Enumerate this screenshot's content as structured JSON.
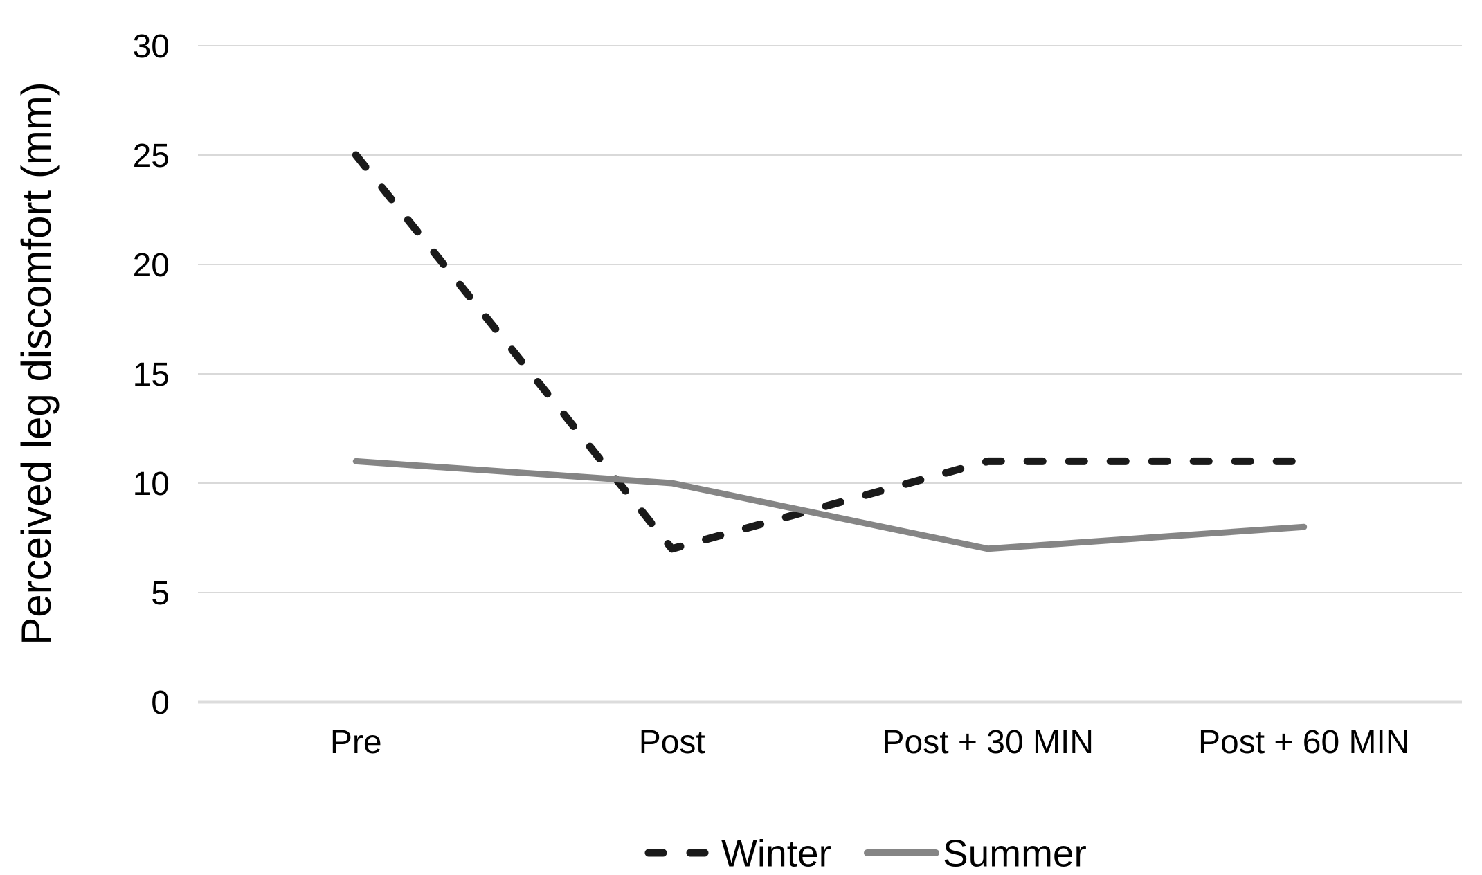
{
  "chart_data": {
    "type": "line",
    "title": "",
    "xlabel": "",
    "ylabel": "Perceived leg discomfort (mm)",
    "categories": [
      "Pre",
      "Post",
      "Post + 30 MIN",
      "Post + 60 MIN"
    ],
    "series": [
      {
        "name": "Winter",
        "values": [
          25,
          7,
          11,
          11
        ],
        "color": "#1a1a1a",
        "line_style": "dashed",
        "stroke_width": 11
      },
      {
        "name": "Summer",
        "values": [
          11,
          10,
          7,
          8
        ],
        "color": "#858585",
        "line_style": "solid",
        "stroke_width": 9
      }
    ],
    "ylim": [
      0,
      30
    ],
    "yticks": [
      0,
      5,
      10,
      15,
      20,
      25,
      30
    ],
    "grid": "horizontal",
    "legend_position": "bottom-center",
    "colors": {
      "background": "#ffffff",
      "gridline": "#d9d9d9",
      "axis_baseline": "#dcdcdc",
      "text": "#000000"
    }
  }
}
